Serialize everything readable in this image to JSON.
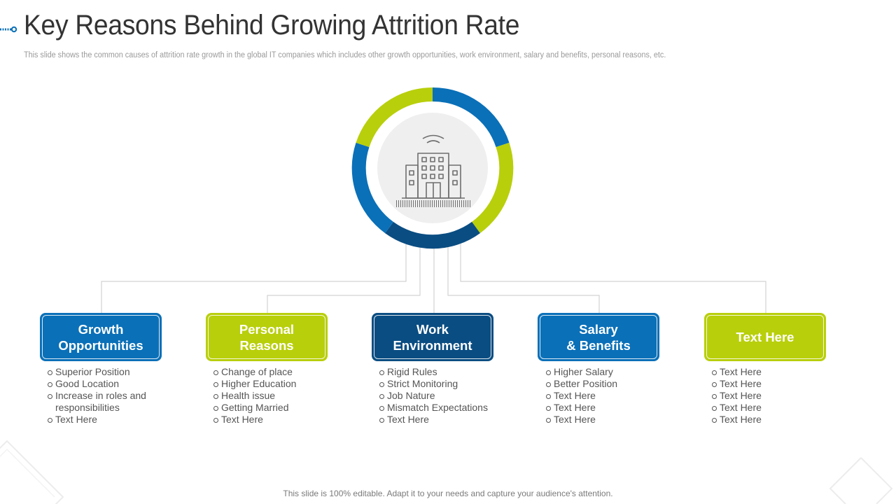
{
  "title": "Key Reasons Behind Growing Attrition Rate",
  "subtitle": "This slide shows the common causes of attrition rate growth in the global IT companies which includes other growth opportunities, work environment, salary and benefits, personal reasons, etc.",
  "center": {
    "icon": "office-building-icon"
  },
  "colors": {
    "blue": "#0a70b8",
    "green": "#b8cf0b",
    "navy": "#0a4d82",
    "line": "#d2d2d2",
    "circle": "#efefef"
  },
  "categories": [
    {
      "label": "Growth\nOpportunities",
      "color": "#0a70b8",
      "items": [
        "Superior Position",
        "Good Location",
        "Increase in roles and\nresponsibilities",
        "Text Here"
      ]
    },
    {
      "label": "Personal\nReasons",
      "color": "#b8cf0b",
      "items": [
        "Change of place",
        "Higher Education",
        "Health issue",
        "Getting Married",
        "Text Here"
      ]
    },
    {
      "label": "Work\nEnvironment",
      "color": "#0a4d82",
      "items": [
        "Rigid Rules",
        "Strict Monitoring",
        "Job Nature",
        "Mismatch Expectations",
        "Text Here"
      ]
    },
    {
      "label": "Salary\n& Benefits",
      "color": "#0a70b8",
      "items": [
        "Higher Salary",
        "Better Position",
        "Text Here",
        "Text Here",
        "Text Here"
      ]
    },
    {
      "label": "Text Here",
      "color": "#b8cf0b",
      "items": [
        "Text Here",
        "Text Here",
        "Text Here",
        "Text Here",
        "Text Here"
      ]
    }
  ],
  "footer": "This slide is 100% editable. Adapt it to your needs and capture your audience's attention."
}
